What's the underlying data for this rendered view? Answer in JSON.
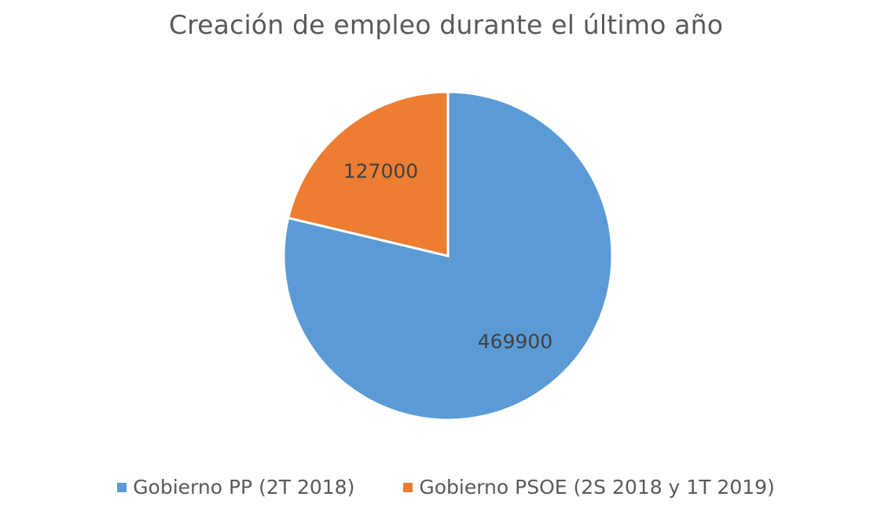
{
  "chart_data": {
    "type": "pie",
    "title": "Creación de empleo durante el último año",
    "categories": [
      "Gobierno PP (2T 2018)",
      "Gobierno PSOE (2S 2018 y 1T 2019)"
    ],
    "values": [
      469900,
      127000
    ],
    "colors": [
      "#5B9BD5",
      "#ED7D31"
    ],
    "data_labels": [
      "469900",
      "127000"
    ],
    "legend_position": "bottom",
    "start_angle_deg": 0,
    "direction": "clockwise"
  },
  "legend": {
    "items": [
      {
        "label": "Gobierno PP (2T 2018)",
        "color": "#5B9BD5"
      },
      {
        "label": "Gobierno PSOE (2S 2018 y 1T 2019)",
        "color": "#ED7D31"
      }
    ]
  }
}
